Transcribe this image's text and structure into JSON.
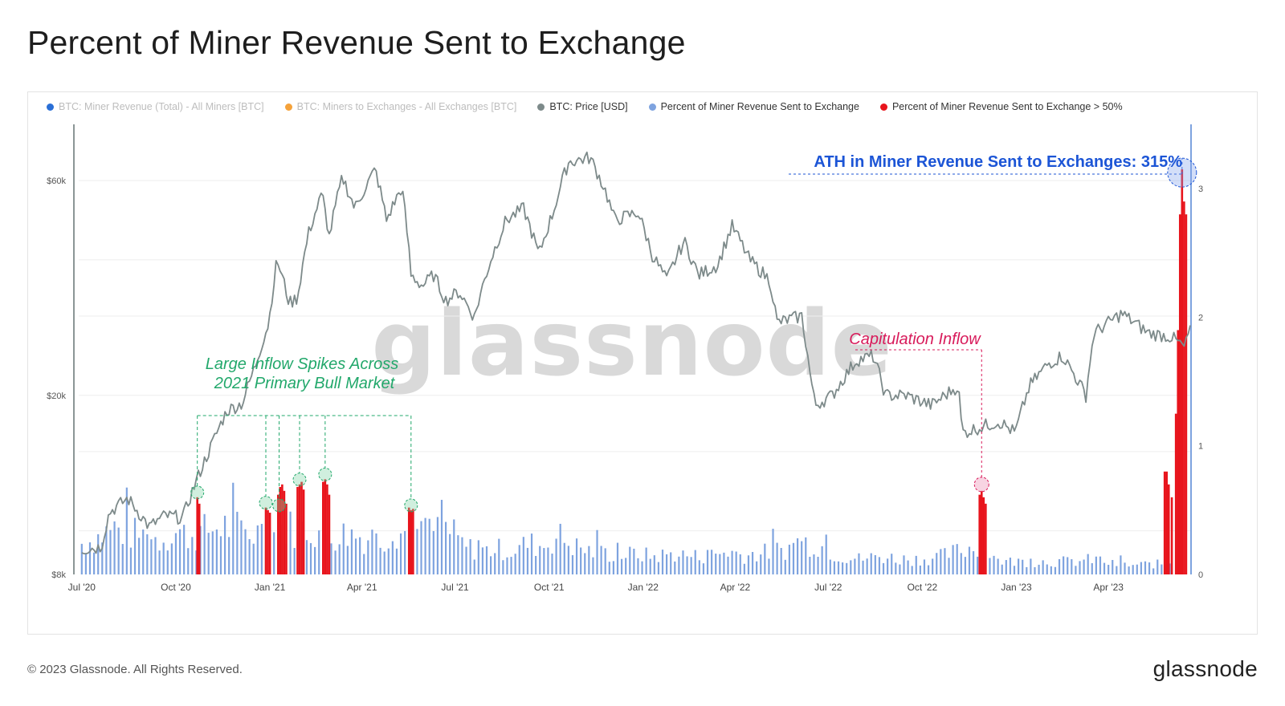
{
  "page": {
    "title": "Percent of Miner Revenue Sent to Exchange",
    "copyright": "© 2023 Glassnode. All Rights Reserved.",
    "brand": "glassnode",
    "watermark": "glassnode"
  },
  "legend": [
    {
      "label": "BTC: Miner Revenue (Total) - All Miners [BTC]",
      "color": "#2a6fd6",
      "active": false
    },
    {
      "label": "BTC: Miners to Exchanges - All Exchanges [BTC]",
      "color": "#f5a23a",
      "active": false
    },
    {
      "label": "BTC: Price [USD]",
      "color": "#7d8a8a",
      "active": true
    },
    {
      "label": "Percent of Miner Revenue Sent to Exchange",
      "color": "#7ea3df",
      "active": true
    },
    {
      "label": "Percent of Miner Revenue Sent to Exchange > 50%",
      "color": "#e8141c",
      "active": true
    }
  ],
  "annotations": {
    "bull": [
      "Large Inflow Spikes Across",
      "2021 Primary Bull Market"
    ],
    "capitulation": "Capitulation Inflow",
    "ath": "ATH in Miner Revenue Sent to Exchanges: 315%"
  },
  "colors": {
    "price": "#7d8a8a",
    "percent": "#7ea3df",
    "above50": "#e8141c",
    "bull_annotation": "#22a86b",
    "capitulation_annotation": "#d81b5b",
    "ath_annotation": "#1c55d6"
  },
  "chart_data": {
    "type": "line",
    "x_tick_labels": [
      "Jul '20",
      "Oct '20",
      "Jan '21",
      "Apr '21",
      "Jul '21",
      "Oct '21",
      "Jan '22",
      "Apr '22",
      "Jul '22",
      "Oct '22",
      "Jan '23",
      "Apr '23"
    ],
    "x_tick_dates": [
      "2020-07-01",
      "2020-10-01",
      "2021-01-01",
      "2021-04-01",
      "2021-07-01",
      "2021-10-01",
      "2022-01-01",
      "2022-04-01",
      "2022-07-01",
      "2022-10-01",
      "2023-01-01",
      "2023-04-01"
    ],
    "x_range": [
      "2020-06-28",
      "2023-06-20"
    ],
    "left_axis": {
      "scale": "log",
      "ticks": [
        8000,
        20000,
        60000
      ],
      "tick_labels": [
        "$8k",
        "$20k",
        "$60k"
      ],
      "range": [
        8000,
        80000
      ]
    },
    "right_axis": {
      "scale": "linear",
      "ticks": [
        0,
        1,
        2,
        3
      ],
      "tick_labels": [
        "0",
        "1",
        "2",
        "3"
      ],
      "range": [
        0,
        3.5
      ]
    },
    "series": [
      {
        "name": "BTC: Price [USD]",
        "axis": "left",
        "points": [
          [
            "2020-07-01",
            9100
          ],
          [
            "2020-07-20",
            9200
          ],
          [
            "2020-07-28",
            11000
          ],
          [
            "2020-08-15",
            11800
          ],
          [
            "2020-09-05",
            10200
          ],
          [
            "2020-09-20",
            10800
          ],
          [
            "2020-10-08",
            10700
          ],
          [
            "2020-10-21",
            12900
          ],
          [
            "2020-11-05",
            15500
          ],
          [
            "2020-11-20",
            18500
          ],
          [
            "2020-12-05",
            19200
          ],
          [
            "2020-12-17",
            23000
          ],
          [
            "2020-12-31",
            29000
          ],
          [
            "2021-01-08",
            40000
          ],
          [
            "2021-01-20",
            32000
          ],
          [
            "2021-01-28",
            33000
          ],
          [
            "2021-02-08",
            46000
          ],
          [
            "2021-02-21",
            56000
          ],
          [
            "2021-02-28",
            45000
          ],
          [
            "2021-03-13",
            61000
          ],
          [
            "2021-03-25",
            52000
          ],
          [
            "2021-04-14",
            63500
          ],
          [
            "2021-04-25",
            49000
          ],
          [
            "2021-05-10",
            58000
          ],
          [
            "2021-05-19",
            37000
          ],
          [
            "2021-05-30",
            35000
          ],
          [
            "2021-06-10",
            37000
          ],
          [
            "2021-06-22",
            32500
          ],
          [
            "2021-07-05",
            34000
          ],
          [
            "2021-07-20",
            29800
          ],
          [
            "2021-08-05",
            40000
          ],
          [
            "2021-08-20",
            49000
          ],
          [
            "2021-09-06",
            52000
          ],
          [
            "2021-09-21",
            41000
          ],
          [
            "2021-10-05",
            51000
          ],
          [
            "2021-10-20",
            66000
          ],
          [
            "2021-11-10",
            67500
          ],
          [
            "2021-11-25",
            57000
          ],
          [
            "2021-12-04",
            49000
          ],
          [
            "2021-12-27",
            51000
          ],
          [
            "2022-01-10",
            41000
          ],
          [
            "2022-01-24",
            36000
          ],
          [
            "2022-02-10",
            44000
          ],
          [
            "2022-02-24",
            37000
          ],
          [
            "2022-03-15",
            39000
          ],
          [
            "2022-03-29",
            47500
          ],
          [
            "2022-04-15",
            40000
          ],
          [
            "2022-05-05",
            36000
          ],
          [
            "2022-05-12",
            29000
          ],
          [
            "2022-06-05",
            30000
          ],
          [
            "2022-06-13",
            22500
          ],
          [
            "2022-06-18",
            19000
          ],
          [
            "2022-07-05",
            20000
          ],
          [
            "2022-07-29",
            24000
          ],
          [
            "2022-08-14",
            24400
          ],
          [
            "2022-08-26",
            20000
          ],
          [
            "2022-09-15",
            20000
          ],
          [
            "2022-10-10",
            19000
          ],
          [
            "2022-11-05",
            21000
          ],
          [
            "2022-11-09",
            16500
          ],
          [
            "2022-12-15",
            17500
          ],
          [
            "2022-12-31",
            16500
          ],
          [
            "2023-01-14",
            21000
          ],
          [
            "2023-02-01",
            23500
          ],
          [
            "2023-02-15",
            24500
          ],
          [
            "2023-03-10",
            20000
          ],
          [
            "2023-03-18",
            27500
          ],
          [
            "2023-04-14",
            30400
          ],
          [
            "2023-05-10",
            27500
          ],
          [
            "2023-06-01",
            27000
          ],
          [
            "2023-06-15",
            25500
          ],
          [
            "2023-06-20",
            28500
          ]
        ]
      },
      {
        "name": "Percent of Miner Revenue Sent to Exchange",
        "axis": "right",
        "points": [
          [
            "2020-07-01",
            0.24
          ],
          [
            "2020-07-15",
            0.28
          ],
          [
            "2020-08-01",
            0.36
          ],
          [
            "2020-08-15",
            0.32
          ],
          [
            "2020-09-01",
            0.3
          ],
          [
            "2020-09-15",
            0.27
          ],
          [
            "2020-10-01",
            0.33
          ],
          [
            "2020-10-15",
            0.3
          ],
          [
            "2020-11-01",
            0.34
          ],
          [
            "2020-11-15",
            0.38
          ],
          [
            "2020-12-01",
            0.35
          ],
          [
            "2020-12-15",
            0.32
          ],
          [
            "2021-01-15",
            0.36
          ],
          [
            "2021-02-01",
            0.36
          ],
          [
            "2021-02-15",
            0.34
          ],
          [
            "2021-03-01",
            0.3
          ],
          [
            "2021-03-20",
            0.32
          ],
          [
            "2021-04-05",
            0.28
          ],
          [
            "2021-04-20",
            0.26
          ],
          [
            "2021-05-01",
            0.36
          ],
          [
            "2021-05-15",
            0.32
          ],
          [
            "2021-06-01",
            0.3
          ],
          [
            "2021-06-20",
            0.38
          ],
          [
            "2021-07-10",
            0.22
          ],
          [
            "2021-07-25",
            0.18
          ],
          [
            "2021-08-10",
            0.2
          ],
          [
            "2021-08-25",
            0.18
          ],
          [
            "2021-09-10",
            0.24
          ],
          [
            "2021-09-25",
            0.22
          ],
          [
            "2021-10-10",
            0.3
          ],
          [
            "2021-10-25",
            0.22
          ],
          [
            "2021-11-10",
            0.18
          ],
          [
            "2021-11-25",
            0.16
          ],
          [
            "2021-12-10",
            0.15
          ],
          [
            "2021-12-25",
            0.16
          ],
          [
            "2022-01-10",
            0.14
          ],
          [
            "2022-02-01",
            0.16
          ],
          [
            "2022-02-20",
            0.14
          ],
          [
            "2022-03-10",
            0.15
          ],
          [
            "2022-03-25",
            0.18
          ],
          [
            "2022-04-10",
            0.15
          ],
          [
            "2022-05-01",
            0.17
          ],
          [
            "2022-05-20",
            0.2
          ],
          [
            "2022-06-10",
            0.25
          ],
          [
            "2022-06-25",
            0.22
          ],
          [
            "2022-07-10",
            0.15
          ],
          [
            "2022-08-01",
            0.12
          ],
          [
            "2022-08-20",
            0.14
          ],
          [
            "2022-09-10",
            0.12
          ],
          [
            "2022-10-01",
            0.12
          ],
          [
            "2022-10-20",
            0.14
          ],
          [
            "2022-11-05",
            0.18
          ],
          [
            "2022-11-25",
            0.22
          ],
          [
            "2022-12-15",
            0.1
          ],
          [
            "2023-01-05",
            0.1
          ],
          [
            "2023-01-25",
            0.1
          ],
          [
            "2023-02-10",
            0.1
          ],
          [
            "2023-03-01",
            0.1
          ],
          [
            "2023-03-20",
            0.12
          ],
          [
            "2023-04-05",
            0.08
          ],
          [
            "2023-04-25",
            0.07
          ],
          [
            "2023-05-10",
            0.08
          ],
          [
            "2023-05-25",
            0.08
          ],
          [
            "2023-06-01",
            0.1
          ]
        ]
      },
      {
        "name": "Percent of Miner Revenue Sent to Exchange > 50%",
        "axis": "right",
        "points": [
          [
            "2020-10-22",
            0.6
          ],
          [
            "2020-10-24",
            0.55
          ],
          [
            "2020-12-28",
            0.52
          ],
          [
            "2020-12-30",
            0.5
          ],
          [
            "2021-01-01",
            0.48
          ],
          [
            "2021-01-09",
            0.62
          ],
          [
            "2021-01-11",
            0.68
          ],
          [
            "2021-01-13",
            0.7
          ],
          [
            "2021-01-15",
            0.65
          ],
          [
            "2021-01-17",
            0.55
          ],
          [
            "2021-01-28",
            0.68
          ],
          [
            "2021-01-30",
            0.7
          ],
          [
            "2021-02-01",
            0.72
          ],
          [
            "2021-02-03",
            0.66
          ],
          [
            "2021-02-22",
            0.72
          ],
          [
            "2021-02-24",
            0.74
          ],
          [
            "2021-02-26",
            0.7
          ],
          [
            "2021-02-28",
            0.62
          ],
          [
            "2021-05-17",
            0.52
          ],
          [
            "2021-05-19",
            0.5
          ],
          [
            "2021-05-21",
            0.51
          ],
          [
            "2022-11-26",
            0.62
          ],
          [
            "2022-11-28",
            0.65
          ],
          [
            "2022-11-30",
            0.6
          ],
          [
            "2022-12-02",
            0.55
          ],
          [
            "2023-05-26",
            0.8
          ],
          [
            "2023-05-28",
            0.8
          ],
          [
            "2023-05-30",
            0.7
          ],
          [
            "2023-06-02",
            0.6
          ],
          [
            "2023-06-06",
            1.25
          ],
          [
            "2023-06-08",
            1.9
          ],
          [
            "2023-06-10",
            2.8
          ],
          [
            "2023-06-12",
            3.15
          ],
          [
            "2023-06-14",
            2.9
          ],
          [
            "2023-06-16",
            2.8
          ]
        ]
      }
    ],
    "annotation_points": {
      "bull_spikes": [
        "2020-10-22",
        "2020-12-28",
        "2021-01-10",
        "2021-01-30",
        "2021-02-24",
        "2021-05-19"
      ],
      "capitulation": "2022-11-28",
      "ath": "2023-06-12"
    }
  }
}
